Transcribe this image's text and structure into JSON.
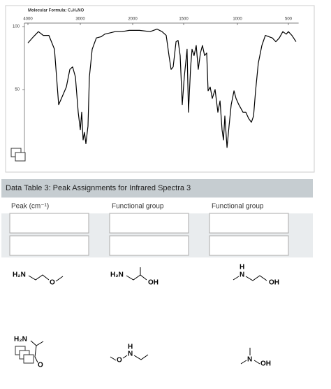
{
  "chart_data": {
    "type": "line",
    "title": "Molecular Formula: C₃H₉NO",
    "color": "#000000",
    "xlim": [
      4000,
      400
    ],
    "xticks": [
      4000,
      3000,
      2000,
      1500,
      1000,
      500
    ],
    "ylim": [
      0,
      100
    ],
    "yticks": [
      50,
      100
    ],
    "x": [
      4000,
      3893,
      3800,
      3707,
      3600,
      3493,
      3413,
      3360,
      3267,
      3200,
      3147,
      3093,
      3040,
      3000,
      2973,
      2947,
      2920,
      2893,
      2853,
      2827,
      2773,
      2693,
      2600,
      2533,
      2333,
      2200,
      2067,
      1932,
      1829,
      1760,
      1712,
      1671,
      1644,
      1623,
      1603,
      1575,
      1555,
      1534,
      1514,
      1494,
      1468,
      1455,
      1435,
      1422,
      1403,
      1383,
      1364,
      1344,
      1325,
      1305,
      1286,
      1273,
      1253,
      1234,
      1208,
      1182,
      1162,
      1143,
      1130,
      1117,
      1097,
      1078,
      1058,
      1032,
      1013,
      986,
      945,
      918,
      890,
      863,
      842,
      822,
      795,
      760,
      726,
      692,
      658,
      623,
      589,
      555,
      521,
      500,
      466,
      425
    ],
    "values": [
      87,
      92,
      96,
      93,
      93,
      82,
      38,
      43,
      52,
      66,
      68,
      60,
      32,
      18,
      32,
      10,
      16,
      7,
      21,
      60,
      82,
      91,
      92,
      94,
      96,
      96,
      97,
      97,
      96,
      98,
      96,
      93,
      77,
      66,
      68,
      88,
      89,
      77,
      38,
      60,
      82,
      32,
      68,
      82,
      77,
      85,
      66,
      79,
      85,
      77,
      79,
      49,
      52,
      43,
      50,
      32,
      41,
      18,
      10,
      29,
      4,
      21,
      38,
      49,
      43,
      38,
      32,
      32,
      27,
      24,
      29,
      49,
      71,
      85,
      93,
      92,
      91,
      88,
      91,
      96,
      94,
      96,
      93,
      88
    ]
  },
  "table": {
    "title": "Data Table 3: Peak Assignments for Infrared Spectra 3",
    "headers": [
      "Peak (cm⁻¹)",
      "Functional group",
      "Functional group"
    ]
  },
  "molecules": [
    [
      "H₂N",
      "O"
    ],
    [
      "H₂N",
      "OH"
    ],
    [
      "H",
      "N",
      "OH"
    ],
    [
      "H₂N",
      "O"
    ],
    [
      "H",
      "N",
      "O"
    ],
    [
      "N",
      "OH"
    ]
  ]
}
